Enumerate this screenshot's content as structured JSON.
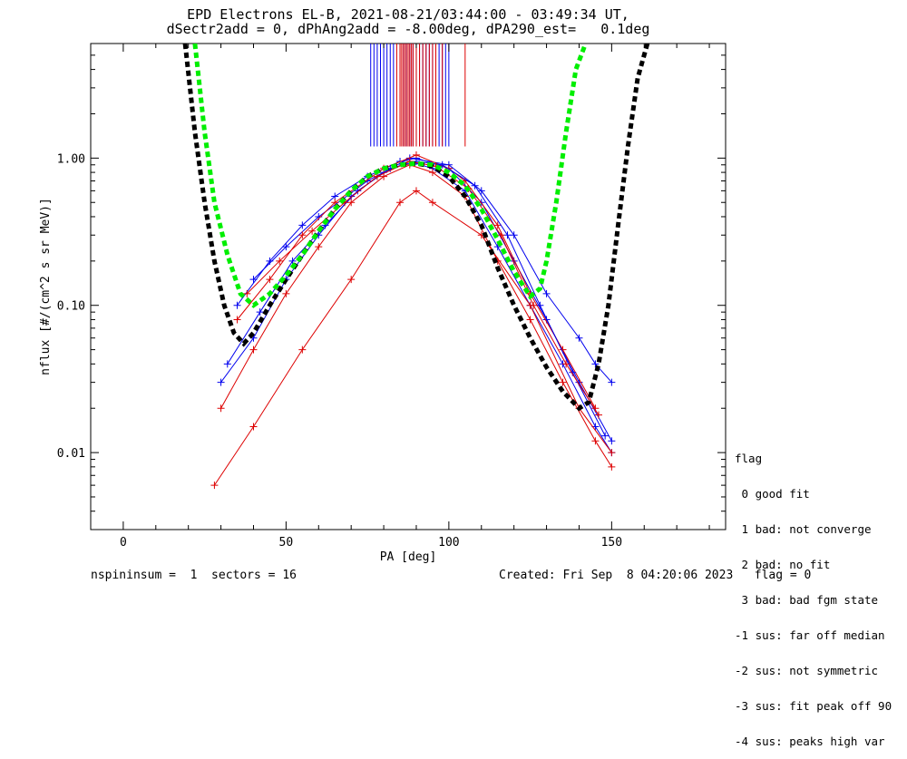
{
  "title_line1": "EPD Electrons EL-B, 2021-08-21/03:44:00 - 03:49:34 UT,",
  "title_line2": "dSectr2add = 0, dPhAng2add = -8.00deg, dPA290_est=   0.1deg",
  "footer": {
    "left": "nspininsum =  1  sectors = 16",
    "right": "Created: Fri Sep  8 04:20:06 2023   flag = 0"
  },
  "legend": {
    "title": "flag",
    "items": [
      " 0 good fit",
      " 1 bad: not converge",
      " 2 bad: no fit",
      " 3 bad: bad fgm state",
      "-1 sus: far off median",
      "-2 sus: not symmetric",
      "-3 sus: fit peak off 90",
      "-4 sus: peaks high var"
    ]
  },
  "colors": {
    "red": "#dd0000",
    "blue": "#0000ee",
    "green": "#00ee00",
    "black": "#000000"
  },
  "chart_data": {
    "type": "line",
    "title": "EPD Electrons EL-B, 2021-08-21/03:44:00 - 03:49:34 UT,",
    "xlabel": "PA [deg]",
    "ylabel": "nflux [#/(cm^2 s sr MeV)]",
    "xlim": [
      -10,
      185
    ],
    "ylim": [
      0.003,
      6
    ],
    "yscale": "log",
    "xticks": [
      0,
      50,
      100,
      150
    ],
    "xtick_labels": [
      "0",
      "50",
      "100",
      "150"
    ],
    "yticks": [
      0.01,
      0.1,
      1.0
    ],
    "ytick_labels": [
      "0.01",
      "0.10",
      "1.00"
    ],
    "legend_position": "outside-right",
    "grid": false,
    "reference_curves": [
      {
        "color": "green",
        "style": "dashed",
        "x": [
          22,
          25,
          28,
          32,
          36,
          40,
          45,
          50,
          55,
          60,
          65,
          70,
          75,
          80,
          85,
          90,
          95,
          100,
          105,
          110,
          115,
          120,
          125,
          128,
          130,
          133,
          136,
          139,
          142
        ],
        "y": [
          6.0,
          1.5,
          0.5,
          0.22,
          0.12,
          0.1,
          0.12,
          0.16,
          0.22,
          0.32,
          0.45,
          0.6,
          0.75,
          0.85,
          0.9,
          0.92,
          0.9,
          0.8,
          0.65,
          0.45,
          0.28,
          0.17,
          0.115,
          0.13,
          0.2,
          0.5,
          1.5,
          4.0,
          6.0
        ]
      },
      {
        "color": "black",
        "style": "dashed",
        "x": [
          19,
          22,
          25,
          28,
          31,
          34,
          37,
          40,
          45,
          50,
          55,
          60,
          65,
          70,
          75,
          80,
          85,
          90,
          95,
          100,
          105,
          110,
          115,
          120,
          125,
          130,
          135,
          140,
          143,
          146,
          149,
          152,
          155,
          158,
          161
        ],
        "y": [
          6.0,
          1.5,
          0.5,
          0.2,
          0.1,
          0.065,
          0.055,
          0.065,
          0.1,
          0.15,
          0.22,
          0.32,
          0.45,
          0.6,
          0.75,
          0.85,
          0.9,
          0.92,
          0.88,
          0.75,
          0.55,
          0.35,
          0.18,
          0.1,
          0.06,
          0.038,
          0.026,
          0.02,
          0.022,
          0.04,
          0.1,
          0.35,
          1.2,
          3.5,
          6.0
        ]
      }
    ],
    "sample_traces": [
      {
        "color": "blue",
        "x": [
          30,
          40,
          50,
          60,
          70,
          80,
          88,
          95,
          105,
          115,
          125,
          135,
          145,
          150
        ],
        "y": [
          0.03,
          0.06,
          0.15,
          0.3,
          0.55,
          0.8,
          0.95,
          0.85,
          0.6,
          0.25,
          0.1,
          0.04,
          0.015,
          0.01
        ]
      },
      {
        "color": "red",
        "x": [
          30,
          40,
          50,
          60,
          70,
          80,
          88,
          95,
          105,
          115,
          125,
          135,
          145,
          150
        ],
        "y": [
          0.02,
          0.05,
          0.12,
          0.25,
          0.5,
          0.75,
          0.9,
          0.8,
          0.55,
          0.2,
          0.08,
          0.03,
          0.012,
          0.008
        ]
      },
      {
        "color": "blue",
        "x": [
          35,
          45,
          55,
          65,
          75,
          85,
          90,
          100,
          110,
          120,
          130,
          140,
          150
        ],
        "y": [
          0.1,
          0.2,
          0.35,
          0.55,
          0.75,
          0.95,
          1.0,
          0.85,
          0.5,
          0.2,
          0.08,
          0.03,
          0.012
        ]
      },
      {
        "color": "red",
        "x": [
          28,
          40,
          55,
          70,
          85,
          90,
          95,
          110,
          125,
          140,
          150
        ],
        "y": [
          0.006,
          0.015,
          0.05,
          0.15,
          0.5,
          0.6,
          0.5,
          0.3,
          0.1,
          0.02,
          0.01
        ]
      },
      {
        "color": "blue",
        "x": [
          40,
          50,
          60,
          75,
          88,
          100,
          110,
          120,
          130,
          140,
          145,
          150
        ],
        "y": [
          0.15,
          0.25,
          0.4,
          0.7,
          1.0,
          0.9,
          0.6,
          0.3,
          0.12,
          0.06,
          0.04,
          0.03
        ]
      },
      {
        "color": "red",
        "x": [
          35,
          45,
          55,
          65,
          80,
          90,
          100,
          105,
          115,
          125,
          135,
          145
        ],
        "y": [
          0.08,
          0.15,
          0.3,
          0.5,
          0.85,
          1.05,
          0.85,
          0.7,
          0.35,
          0.12,
          0.05,
          0.02
        ]
      },
      {
        "color": "blue",
        "x": [
          32,
          42,
          52,
          62,
          72,
          82,
          90,
          98,
          108,
          118,
          128,
          138,
          148
        ],
        "y": [
          0.04,
          0.09,
          0.2,
          0.35,
          0.6,
          0.85,
          0.95,
          0.9,
          0.65,
          0.3,
          0.1,
          0.035,
          0.013
        ]
      },
      {
        "color": "red",
        "x": [
          38,
          48,
          58,
          68,
          78,
          88,
          96,
          106,
          116,
          126,
          136,
          146
        ],
        "y": [
          0.12,
          0.2,
          0.32,
          0.5,
          0.75,
          0.95,
          0.88,
          0.62,
          0.3,
          0.1,
          0.04,
          0.018
        ]
      }
    ],
    "vertical_markers": {
      "y_range": [
        1.2,
        6.0
      ],
      "blue_x": [
        76,
        77,
        78,
        79,
        80,
        81,
        82,
        83,
        85,
        86,
        87,
        88,
        89,
        90,
        91,
        92,
        93,
        94,
        95,
        96,
        97,
        98,
        99,
        100
      ],
      "red_x": [
        84,
        85,
        85.5,
        86,
        86.5,
        87,
        87.5,
        88,
        88.5,
        89,
        90,
        91,
        92,
        93,
        94,
        95,
        96,
        98,
        105
      ]
    }
  }
}
